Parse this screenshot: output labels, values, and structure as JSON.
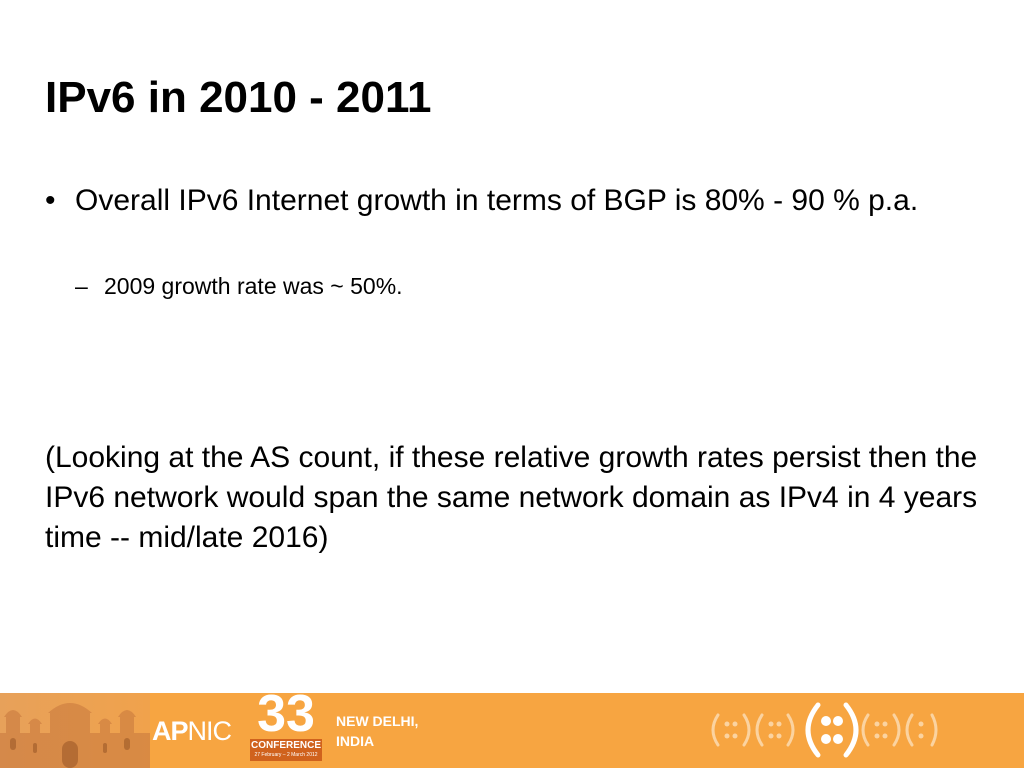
{
  "slide": {
    "title": "IPv6 in 2010 - 2011",
    "bullets": [
      {
        "marker": "•",
        "text": "Overall IPv6 Internet growth in terms of BGP is 80% - 90 % p.a."
      }
    ],
    "sub_bullets": [
      {
        "marker": "–",
        "text": "2009 growth rate was ~ 50%."
      }
    ],
    "paragraph": "(Looking at the AS count, if these relative growth rates persist then the IPv6 network would span the same network domain as IPv4 in 4 years time  -- mid/late 2016)"
  },
  "footer": {
    "org_bold": "AP",
    "org_light": "NIC",
    "conference_number": "33",
    "conference_label": "CONFERENCE",
    "conference_dates": "27 February – 2 March 2012",
    "location_line1": "NEW DELHI,",
    "location_line2": "INDIA",
    "background_color": "#F7A541",
    "accent_color": "#D0621D",
    "icons": [
      "monument-silhouette-icon",
      "ipv6-colon-pattern-icon"
    ]
  }
}
